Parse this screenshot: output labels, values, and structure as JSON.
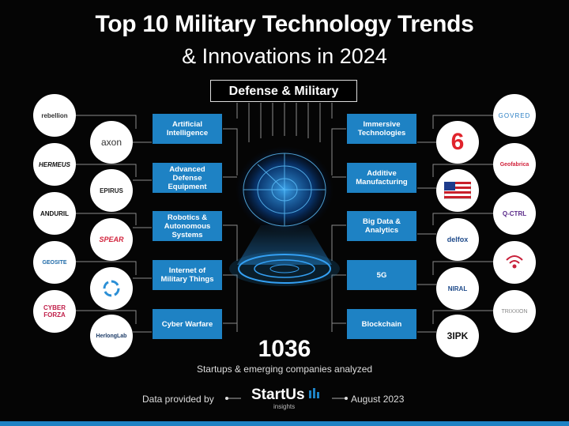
{
  "title_line1": "Top 10 Military Technology Trends",
  "title_line2": "& Innovations in 2024",
  "badge": "Defense & Military",
  "trends_left": [
    "Artificial Intelligence",
    "Advanced Defense Equipment",
    "Robotics & Autonomous Systems",
    "Internet of Military Things",
    "Cyber Warfare"
  ],
  "trends_right": [
    "Immersive Technologies",
    "Additive Manufacturing",
    "Big Data & Analytics",
    "5G",
    "Blockchain"
  ],
  "logos_left_outer": [
    "rebellion",
    "HERMEUS",
    "ANDURIL",
    "GEOSITE",
    "CYBER FORZA"
  ],
  "logos_left_inner": [
    "axon",
    "EPIRUS",
    "SPEAR",
    "",
    "HerlongLab"
  ],
  "logos_right_inner": [
    "6",
    "",
    "delfox",
    "NIRAL",
    "3IPK"
  ],
  "logos_right_outer": [
    "GOVRED",
    "Geofabrica",
    "Q-CTRL",
    "",
    "TRIXXION"
  ],
  "count": "1036",
  "count_caption": "Startups & emerging companies analyzed",
  "footer_left": "Data provided by",
  "brand": "StartUs",
  "brand_sub": "insights",
  "footer_right": "August 2023",
  "colors": {
    "accent": "#1e82c4",
    "background": "#050505"
  }
}
